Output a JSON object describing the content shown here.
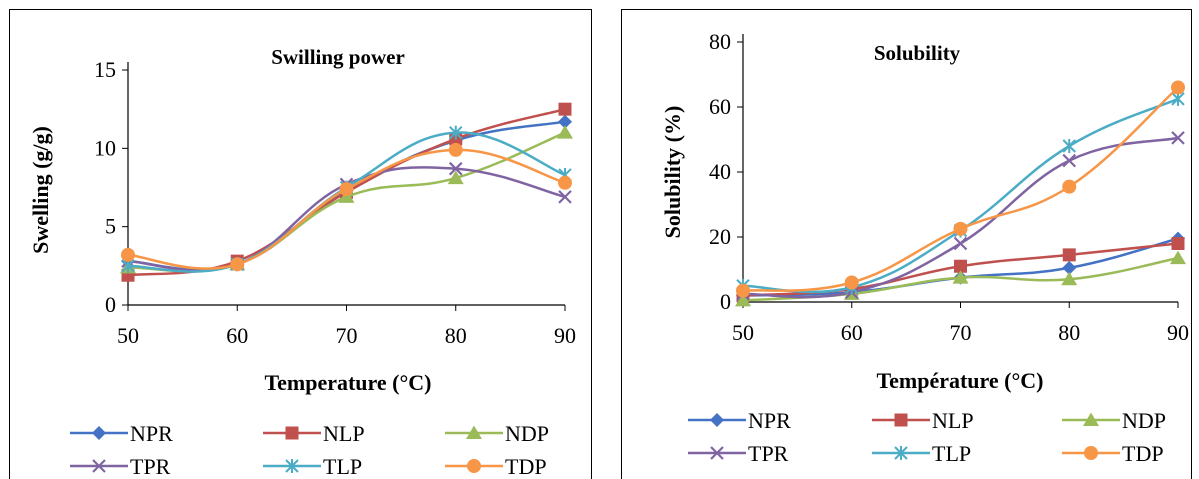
{
  "chart_data": [
    {
      "type": "line",
      "title": "Swilling power",
      "xlabel": "Temperature (°C)",
      "ylabel": "Swelling (g/g)",
      "x": [
        50,
        60,
        70,
        80,
        90
      ],
      "xticks": [
        "50",
        "60",
        "70",
        "80",
        "90"
      ],
      "ylim": [
        0,
        15
      ],
      "yticks": [
        "0",
        "5",
        "10",
        "15"
      ],
      "grid": false,
      "legend": "bottom",
      "series": [
        {
          "name": "NPR",
          "values": [
            2.8,
            2.6,
            7.3,
            10.5,
            11.7
          ],
          "color": "#4472C4",
          "marker": "diamond"
        },
        {
          "name": "NLP",
          "values": [
            1.9,
            2.8,
            7.2,
            10.6,
            12.5
          ],
          "color": "#C0504D",
          "marker": "square"
        },
        {
          "name": "NDP",
          "values": [
            2.4,
            2.6,
            6.9,
            8.1,
            11.0
          ],
          "color": "#9BBB59",
          "marker": "triangle"
        },
        {
          "name": "TPR",
          "values": [
            2.8,
            2.6,
            7.7,
            8.7,
            6.9
          ],
          "color": "#8064A2",
          "marker": "x"
        },
        {
          "name": "TLP",
          "values": [
            2.5,
            2.6,
            7.5,
            11.0,
            8.3
          ],
          "color": "#4BACC6",
          "marker": "star"
        },
        {
          "name": "TDP",
          "values": [
            3.2,
            2.6,
            7.4,
            9.9,
            7.8
          ],
          "color": "#F79646",
          "marker": "circle"
        }
      ]
    },
    {
      "type": "line",
      "title": "Solubility",
      "xlabel": "Température (°C)",
      "ylabel": "Solubility  (%)",
      "x": [
        50,
        60,
        70,
        80,
        90
      ],
      "xticks": [
        "50",
        "60",
        "70",
        "80",
        "90"
      ],
      "ylim": [
        0,
        80
      ],
      "yticks": [
        "0",
        "20",
        "40",
        "60",
        "80"
      ],
      "grid": false,
      "legend": "bottom",
      "series": [
        {
          "name": "NPR",
          "values": [
            2,
            3,
            7.5,
            10.5,
            19.5
          ],
          "color": "#4472C4",
          "marker": "diamond"
        },
        {
          "name": "NLP",
          "values": [
            2,
            4,
            11,
            14.5,
            18
          ],
          "color": "#C0504D",
          "marker": "square"
        },
        {
          "name": "NDP",
          "values": [
            0.5,
            2.5,
            7.5,
            7,
            13.5
          ],
          "color": "#9BBB59",
          "marker": "triangle"
        },
        {
          "name": "TPR",
          "values": [
            2.5,
            3,
            18,
            43.5,
            50.5
          ],
          "color": "#8064A2",
          "marker": "x"
        },
        {
          "name": "TLP",
          "values": [
            5,
            4.5,
            22,
            48,
            62.5
          ],
          "color": "#4BACC6",
          "marker": "star"
        },
        {
          "name": "TDP",
          "values": [
            3.5,
            6,
            22.5,
            35.5,
            66
          ],
          "color": "#F79646",
          "marker": "circle"
        }
      ]
    }
  ]
}
